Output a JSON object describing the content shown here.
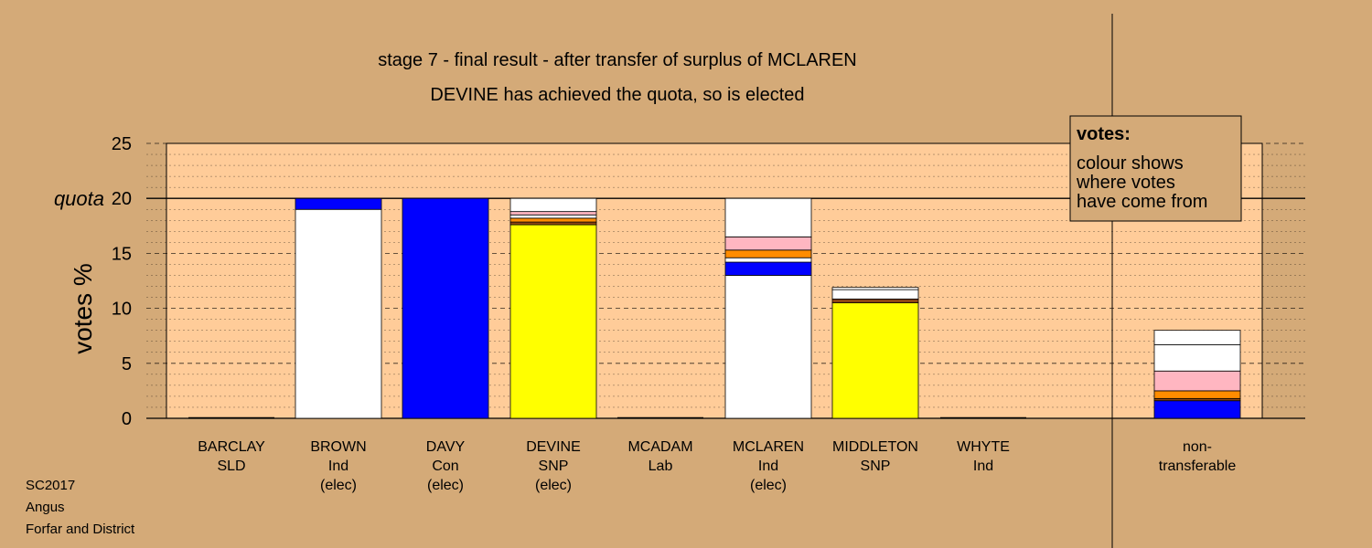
{
  "chart_data": {
    "type": "bar",
    "stacked": true,
    "title": "stage 7 - final result - after transfer of surplus of MCLAREN",
    "subtitle": "DEVINE has achieved the quota, so is elected",
    "ylabel": "votes %",
    "ylim": [
      0,
      25
    ],
    "yticks": [
      0,
      5,
      10,
      15,
      20,
      25
    ],
    "quota": 20,
    "quota_label": "quota",
    "grid": true,
    "categories": [
      {
        "name": "BARCLAY",
        "party": "SLD",
        "status": ""
      },
      {
        "name": "BROWN",
        "party": "Ind",
        "status": "(elec)"
      },
      {
        "name": "DAVY",
        "party": "Con",
        "status": "(elec)"
      },
      {
        "name": "DEVINE",
        "party": "SNP",
        "status": "(elec)"
      },
      {
        "name": "MCADAM",
        "party": "Lab",
        "status": ""
      },
      {
        "name": "MCLAREN",
        "party": "Ind",
        "status": "(elec)"
      },
      {
        "name": "MIDDLETON",
        "party": "SNP",
        "status": ""
      },
      {
        "name": "WHYTE",
        "party": "Ind",
        "status": ""
      }
    ],
    "nontransferable": {
      "line1": "non-",
      "line2": "transferable"
    },
    "colors": {
      "white": "#ffffff",
      "blue": "#0000ff",
      "yellow": "#ffff00",
      "pink": "#ffb6c1",
      "orange": "#ff8c00",
      "brown": "#8b4513",
      "plot_bg": "#ffcc99",
      "page_bg": "#d4aa78"
    },
    "stacks": [
      [],
      [
        {
          "color": "white",
          "value": 19.0
        },
        {
          "color": "blue",
          "value": 1.0
        }
      ],
      [
        {
          "color": "blue",
          "value": 20.0
        }
      ],
      [
        {
          "color": "yellow",
          "value": 17.6
        },
        {
          "color": "brown",
          "value": 0.25
        },
        {
          "color": "orange",
          "value": 0.35
        },
        {
          "color": "white",
          "value": 0.3
        },
        {
          "color": "pink",
          "value": 0.3
        },
        {
          "color": "white",
          "value": 1.2
        }
      ],
      [],
      [
        {
          "color": "white",
          "value": 13.0
        },
        {
          "color": "blue",
          "value": 1.2
        },
        {
          "color": "white",
          "value": 0.4
        },
        {
          "color": "orange",
          "value": 0.7
        },
        {
          "color": "pink",
          "value": 1.2
        },
        {
          "color": "white",
          "value": 3.5
        }
      ],
      [
        {
          "color": "yellow",
          "value": 10.5
        },
        {
          "color": "brown",
          "value": 0.35
        },
        {
          "color": "white",
          "value": 0.85
        },
        {
          "color": "white",
          "value": 0.2
        }
      ],
      []
    ],
    "nontransferable_stack": [
      {
        "color": "blue",
        "value": 1.6
      },
      {
        "color": "brown",
        "value": 0.2
      },
      {
        "color": "orange",
        "value": 0.7
      },
      {
        "color": "pink",
        "value": 1.8
      },
      {
        "color": "white",
        "value": 2.4
      },
      {
        "color": "white",
        "value": 1.3
      }
    ]
  },
  "legend": {
    "title": "votes:",
    "line1": "colour shows",
    "line2": "where votes",
    "line3": "have come from"
  },
  "footer": {
    "line1": "SC2017",
    "line2": "Angus",
    "line3": "Forfar and District"
  }
}
